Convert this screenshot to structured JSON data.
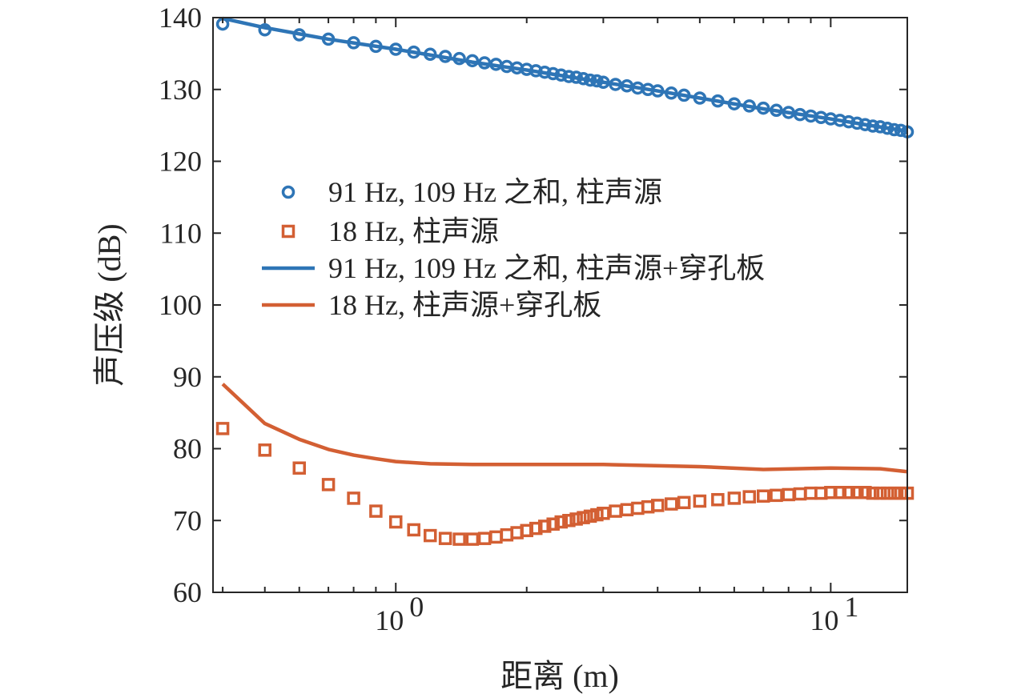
{
  "chart_data": {
    "type": "line",
    "xscale": "log",
    "xlim": [
      0.38,
      15
    ],
    "ylim": [
      60,
      140
    ],
    "xlabel": "距离 (m)",
    "ylabel": "声压级 (dB)",
    "grid": false,
    "legend_position": "center-left",
    "yticks": [
      "60",
      "70",
      "80",
      "90",
      "100",
      "110",
      "120",
      "130",
      "140"
    ],
    "xticks": [
      {
        "value": 1,
        "base": "10",
        "exp": "0"
      },
      {
        "value": 10,
        "base": "10",
        "exp": "1"
      }
    ],
    "series": [
      {
        "name": "91 Hz, 109 Hz 之和, 柱声源",
        "style": "markers",
        "marker": "circle",
        "color": "#2E75B6",
        "x": [
          0.4,
          0.5,
          0.6,
          0.7,
          0.8,
          0.9,
          1.0,
          1.1,
          1.2,
          1.3,
          1.4,
          1.5,
          1.6,
          1.7,
          1.8,
          1.9,
          2.0,
          2.1,
          2.2,
          2.3,
          2.4,
          2.5,
          2.6,
          2.7,
          2.8,
          2.9,
          3.0,
          3.2,
          3.4,
          3.6,
          3.8,
          4.0,
          4.3,
          4.6,
          5.0,
          5.5,
          6.0,
          6.5,
          7.0,
          7.5,
          8.0,
          8.5,
          9.0,
          9.5,
          10.0,
          10.5,
          11.0,
          11.5,
          12.0,
          12.5,
          13.0,
          13.5,
          14.0,
          14.5,
          15.0
        ],
        "y": [
          139.1,
          138.3,
          137.6,
          137.0,
          136.5,
          136.0,
          135.6,
          135.2,
          134.9,
          134.6,
          134.3,
          134.0,
          133.7,
          133.5,
          133.2,
          133.0,
          132.8,
          132.6,
          132.4,
          132.2,
          132.0,
          131.8,
          131.7,
          131.5,
          131.3,
          131.2,
          131.0,
          130.7,
          130.5,
          130.2,
          130.0,
          129.8,
          129.5,
          129.2,
          128.8,
          128.4,
          128.0,
          127.7,
          127.4,
          127.1,
          126.8,
          126.5,
          126.3,
          126.1,
          125.9,
          125.7,
          125.5,
          125.3,
          125.1,
          124.9,
          124.8,
          124.6,
          124.4,
          124.3,
          124.1
        ]
      },
      {
        "name": "18 Hz, 柱声源",
        "style": "markers",
        "marker": "square",
        "color": "#D35F33",
        "x": [
          0.4,
          0.5,
          0.6,
          0.7,
          0.8,
          0.9,
          1.0,
          1.1,
          1.2,
          1.3,
          1.4,
          1.5,
          1.6,
          1.7,
          1.8,
          1.9,
          2.0,
          2.1,
          2.2,
          2.3,
          2.4,
          2.5,
          2.6,
          2.7,
          2.8,
          2.9,
          3.0,
          3.2,
          3.4,
          3.6,
          3.8,
          4.0,
          4.3,
          4.6,
          5.0,
          5.5,
          6.0,
          6.5,
          7.0,
          7.5,
          8.0,
          8.5,
          9.0,
          9.5,
          10.0,
          10.5,
          11.0,
          11.5,
          12.0,
          12.5,
          13.0,
          13.5,
          14.0,
          14.5,
          15.0
        ],
        "y": [
          82.8,
          79.8,
          77.3,
          75.0,
          73.1,
          71.3,
          69.8,
          68.7,
          67.9,
          67.5,
          67.4,
          67.4,
          67.5,
          67.7,
          68.0,
          68.3,
          68.6,
          68.9,
          69.2,
          69.5,
          69.8,
          70.0,
          70.2,
          70.4,
          70.6,
          70.8,
          71.0,
          71.3,
          71.5,
          71.7,
          71.9,
          72.1,
          72.3,
          72.5,
          72.7,
          72.9,
          73.1,
          73.3,
          73.4,
          73.5,
          73.6,
          73.7,
          73.8,
          73.8,
          73.9,
          73.9,
          73.9,
          73.9,
          73.9,
          73.8,
          73.8,
          73.8,
          73.8,
          73.8,
          73.8
        ]
      },
      {
        "name": "91 Hz, 109 Hz 之和, 柱声源+穿孔板",
        "style": "line",
        "color": "#2E75B6",
        "x": [
          0.4,
          0.5,
          0.7,
          1.0,
          1.5,
          2.0,
          3.0,
          4.0,
          5.0,
          7.0,
          10.0,
          12.0,
          15.0
        ],
        "y": [
          139.9,
          138.6,
          137.0,
          135.6,
          133.8,
          132.7,
          131.0,
          129.8,
          128.8,
          127.3,
          125.9,
          125.1,
          124.2
        ]
      },
      {
        "name": "18 Hz, 柱声源+穿孔板",
        "style": "line",
        "color": "#D35F33",
        "x": [
          0.4,
          0.5,
          0.6,
          0.7,
          0.8,
          0.9,
          1.0,
          1.2,
          1.5,
          2.0,
          3.0,
          5.0,
          7.0,
          10.0,
          13.0,
          15.0
        ],
        "y": [
          89.0,
          83.5,
          81.3,
          79.9,
          79.1,
          78.6,
          78.2,
          77.9,
          77.8,
          77.8,
          77.8,
          77.5,
          77.1,
          77.3,
          77.2,
          76.8
        ]
      }
    ]
  }
}
